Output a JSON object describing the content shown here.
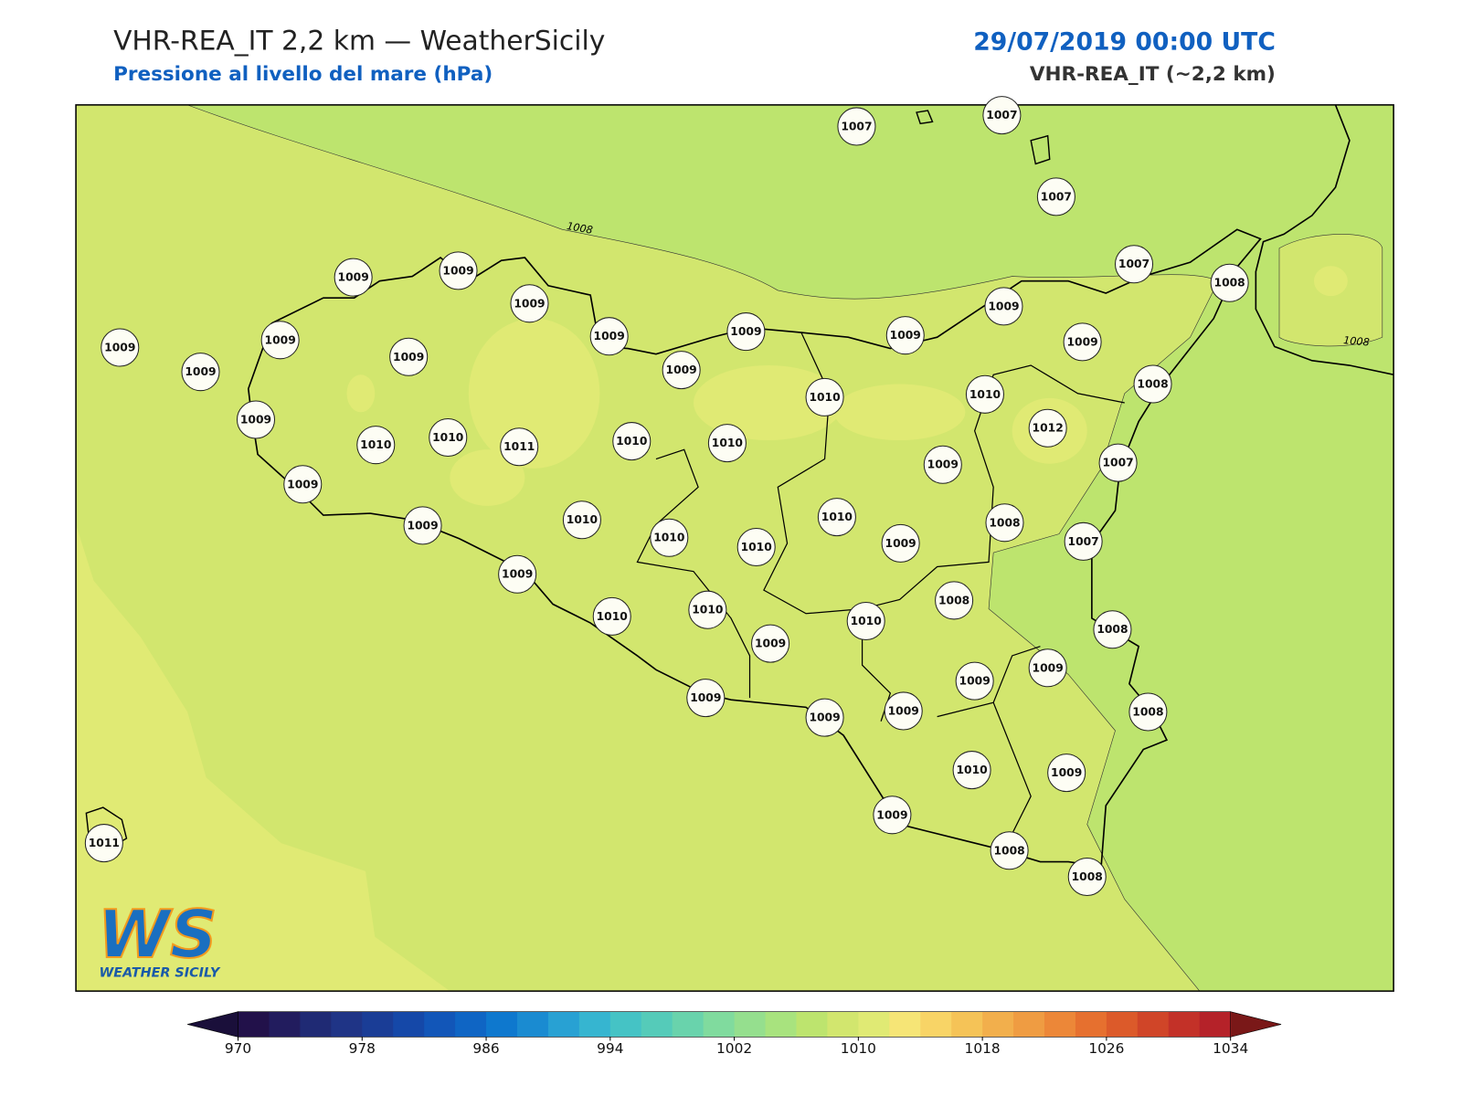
{
  "header": {
    "title": "VHR-REA_IT 2,2 km — WeatherSicily",
    "subtitle": "Pressione al livello del mare (hPa)",
    "date": "29/07/2019 00:00 UTC",
    "model": "VHR-REA_IT (~2,2 km)"
  },
  "map": {
    "stations": [
      1007,
      1007,
      1007,
      1009,
      1009,
      1009,
      1009,
      1009,
      1009,
      1007,
      1008,
      1009,
      1009,
      1009,
      1009,
      1009,
      1009,
      1009,
      1010,
      1010,
      1008,
      1012,
      1009,
      1010,
      1010,
      1011,
      1010,
      1010,
      1009,
      1007,
      1009,
      1010,
      1010,
      1008,
      1009,
      1010,
      1010,
      1009,
      1007,
      1009,
      1008,
      1010,
      1010,
      1010,
      1008,
      1009,
      1009,
      1009,
      1009,
      1009,
      1009,
      1008,
      1010,
      1009,
      1009,
      1008,
      1008,
      1011
    ],
    "contour_labels": [
      1008,
      1008
    ],
    "logo": {
      "mark": "WS",
      "text": "WEATHER SICILY"
    }
  },
  "colorbar": {
    "lim": [
      970,
      1034
    ],
    "ticks": [
      970,
      978,
      986,
      994,
      1002,
      1010,
      1018,
      1026,
      1034
    ],
    "colors": [
      "#22114a",
      "#221c5e",
      "#1f2a74",
      "#1f3486",
      "#1a3d96",
      "#1548a8",
      "#1256b8",
      "#0f65c4",
      "#0e78ce",
      "#1a8bd1",
      "#28a1d3",
      "#36b5d0",
      "#45c3c5",
      "#55cbb9",
      "#69d3ac",
      "#80db9e",
      "#95df8e",
      "#a8e37e",
      "#bde46e",
      "#d2e66e",
      "#e0ea74",
      "#f6e576",
      "#f8d466",
      "#f5c357",
      "#f2af4c",
      "#ef9c42",
      "#ec8738",
      "#e6702f",
      "#dc5a2a",
      "#d04528",
      "#c33128",
      "#b52229"
    ],
    "under": "#1a0f3a",
    "over": "#7a1818"
  }
}
